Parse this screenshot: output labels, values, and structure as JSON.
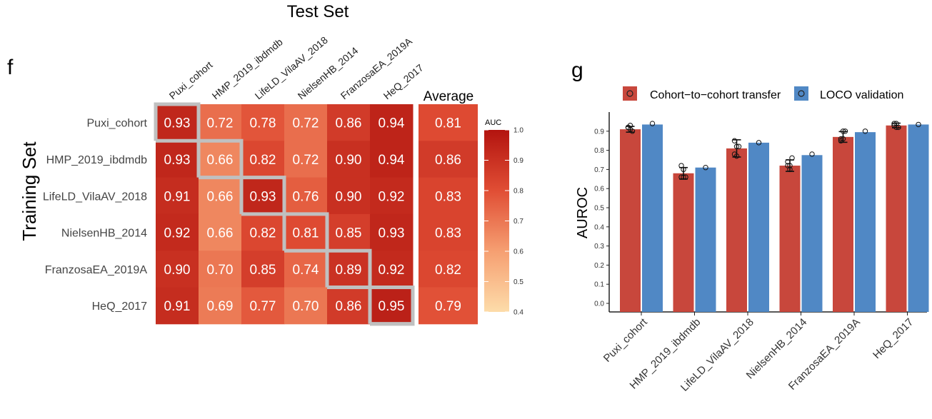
{
  "colors": {
    "high": "#b3140f",
    "low": "#fddcaa",
    "cohort_bar": "#c8473c",
    "loco_bar": "#5088c5",
    "diag_outline": "#c0c0c0"
  },
  "chart_data": [
    {
      "type": "heatmap",
      "panel_label": "f",
      "title": "Test Set",
      "xlabel": "Test Set",
      "ylabel": "Training Set",
      "columns": [
        "Puxi_cohort",
        "HMP_2019_ibdmdb",
        "LifeLD_VilaAV_2018",
        "NielsenHB_2014",
        "FranzosaEA_2019A",
        "HeQ_2017"
      ],
      "rows": [
        "Puxi_cohort",
        "HMP_2019_ibdmdb",
        "LifeLD_VilaAV_2018",
        "NielsenHB_2014",
        "FranzosaEA_2019A",
        "HeQ_2017"
      ],
      "values": [
        [
          0.93,
          0.72,
          0.78,
          0.72,
          0.86,
          0.94
        ],
        [
          0.93,
          0.66,
          0.82,
          0.72,
          0.9,
          0.94
        ],
        [
          0.91,
          0.66,
          0.93,
          0.76,
          0.9,
          0.92
        ],
        [
          0.92,
          0.66,
          0.82,
          0.81,
          0.85,
          0.93
        ],
        [
          0.9,
          0.7,
          0.85,
          0.74,
          0.89,
          0.92
        ],
        [
          0.91,
          0.69,
          0.77,
          0.7,
          0.86,
          0.95
        ]
      ],
      "value_labels": [
        [
          "0.93",
          "0.72",
          "0.78",
          "0.72",
          "0.86",
          "0.94"
        ],
        [
          "0.93",
          "0.66",
          "0.82",
          "0.72",
          "0.90",
          "0.94"
        ],
        [
          "0.91",
          "0.66",
          "0.93",
          "0.76",
          "0.90",
          "0.92"
        ],
        [
          "0.92",
          "0.66",
          "0.82",
          "0.81",
          "0.85",
          "0.93"
        ],
        [
          "0.90",
          "0.70",
          "0.85",
          "0.74",
          "0.89",
          "0.92"
        ],
        [
          "0.91",
          "0.69",
          "0.77",
          "0.70",
          "0.86",
          "0.95"
        ]
      ],
      "average_title": "Average",
      "average": [
        0.81,
        0.86,
        0.83,
        0.83,
        0.82,
        0.79
      ],
      "average_labels": [
        "0.81",
        "0.86",
        "0.83",
        "0.83",
        "0.82",
        "0.79"
      ],
      "legend_title": "AUC",
      "legend_range": [
        0.4,
        1.0
      ],
      "legend_ticks": [
        "0.4",
        "0.5",
        "0.6",
        "0.7",
        "0.8",
        "0.9",
        "1.0"
      ],
      "legend_tick_values": [
        0.4,
        0.5,
        0.6,
        0.7,
        0.8,
        0.9,
        1.0
      ]
    },
    {
      "type": "bar",
      "panel_label": "g",
      "ylabel": "AUROC",
      "xlabel": "",
      "categories": [
        "Puxi_cohort",
        "HMP_2019_ibdmdb",
        "LifeLD_VilaAV_2018",
        "NielsenHB_2014",
        "FranzosaEA_2019A",
        "HeQ_2017"
      ],
      "ylim": [
        0,
        1.0
      ],
      "yticks": [
        0.0,
        0.1,
        0.2,
        0.3,
        0.4,
        0.5,
        0.6,
        0.7,
        0.8,
        0.9
      ],
      "ytick_labels": [
        "0.0",
        "0.1",
        "0.2",
        "0.3",
        "0.4",
        "0.5",
        "0.6",
        "0.7",
        "0.8",
        "0.9"
      ],
      "series": [
        {
          "name": "Cohort−to−cohort transfer",
          "values": [
            0.91,
            0.68,
            0.81,
            0.72,
            0.87,
            0.93
          ],
          "error": [
            0.015,
            0.03,
            0.045,
            0.03,
            0.028,
            0.012
          ],
          "points": [
            [
              0.92,
              0.91,
              0.9,
              0.92,
              0.93
            ],
            [
              0.72,
              0.66,
              0.66,
              0.66,
              0.7
            ],
            [
              0.78,
              0.82,
              0.82,
              0.85,
              0.77
            ],
            [
              0.72,
              0.72,
              0.76,
              0.74,
              0.7
            ],
            [
              0.86,
              0.9,
              0.9,
              0.85,
              0.86
            ],
            [
              0.94,
              0.94,
              0.92,
              0.93,
              0.92
            ]
          ]
        },
        {
          "name": "LOCO validation",
          "values": [
            0.935,
            0.71,
            0.84,
            0.775,
            0.895,
            0.935
          ],
          "points": [
            [
              0.94
            ],
            [
              0.71
            ],
            [
              0.84
            ],
            [
              0.78
            ],
            [
              0.9
            ],
            [
              0.935
            ]
          ]
        }
      ]
    }
  ]
}
